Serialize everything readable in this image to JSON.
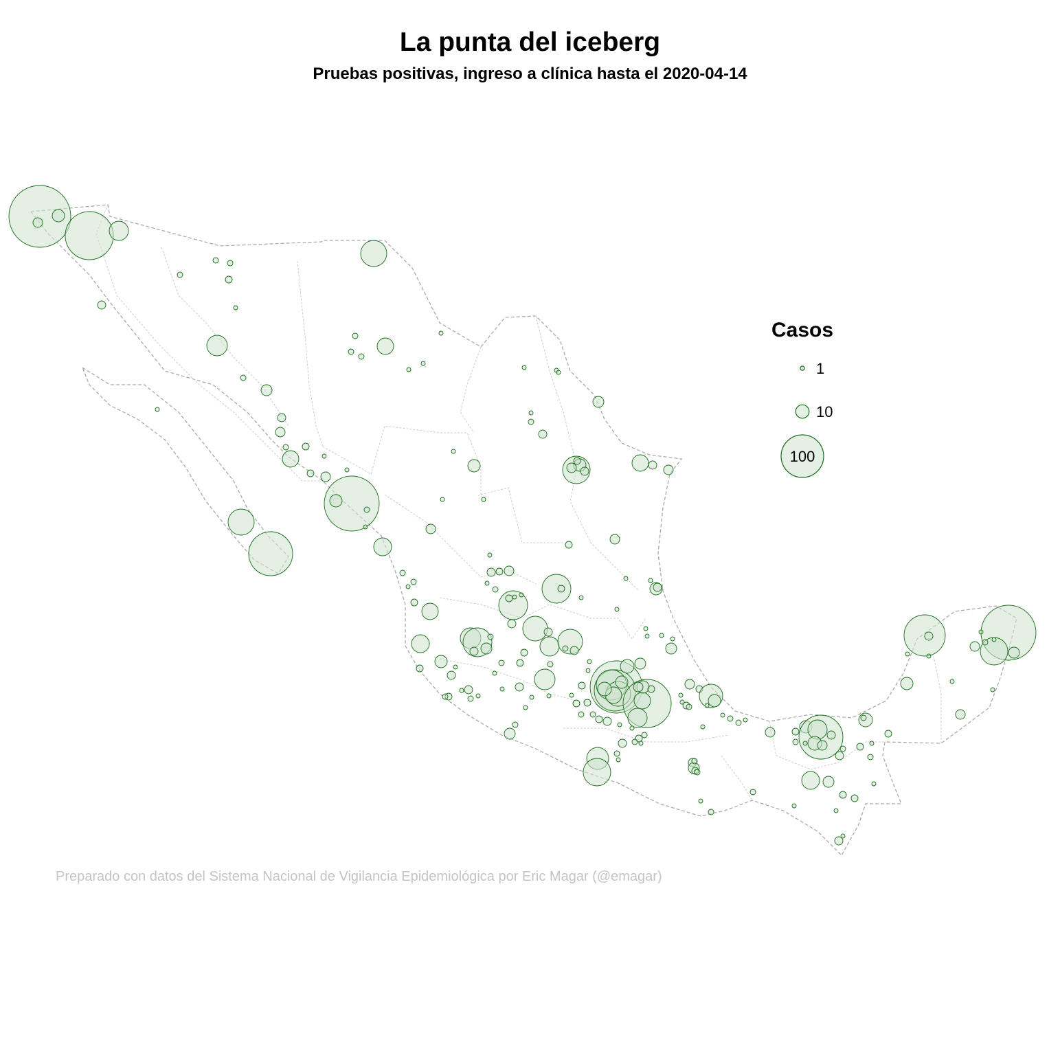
{
  "title": "La punta del iceberg",
  "subtitle": "Pruebas positivas, ingreso a clínica hasta el 2020-04-14",
  "caption": "Preparado con datos del Sistema Nacional de Vigilancia Epidemiológica por Eric Magar (@emagar)",
  "legend": {
    "title": "Casos",
    "items": [
      {
        "label": "1",
        "value": 1
      },
      {
        "label": "10",
        "value": 10
      },
      {
        "label": "100",
        "value": 100
      }
    ]
  },
  "colors": {
    "bubble_fill": "#cfe3cf",
    "bubble_stroke": "#1a6b1a",
    "border": "#aaaaaa"
  }
}
